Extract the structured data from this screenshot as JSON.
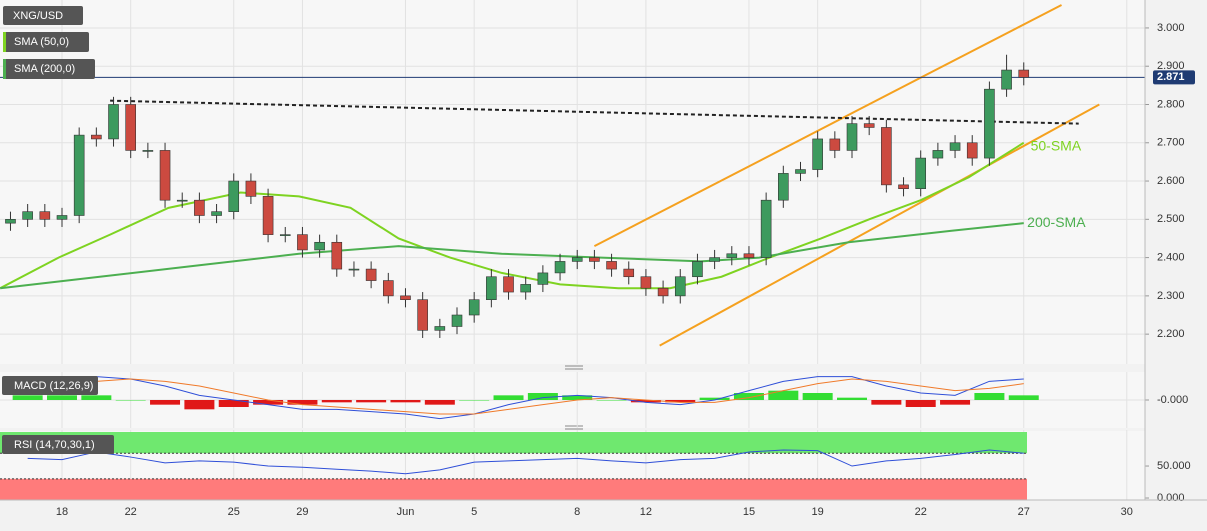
{
  "chart_data": [
    {
      "type": "candlestick",
      "title": "XNG/USD",
      "x": [
        -1.5,
        -1,
        -0.5,
        0,
        0.5,
        1,
        1.5,
        2,
        2.5,
        3,
        3.5,
        4,
        4.5,
        5,
        5.5,
        6,
        6.5,
        7,
        7.5,
        8,
        8.5,
        9,
        9.5,
        10,
        10.5,
        11,
        11.5,
        12,
        12.5,
        13,
        13.5,
        14,
        14.5,
        15,
        15.5,
        16,
        16.5,
        17,
        17.5,
        18,
        18.5,
        19,
        19.5,
        20,
        20.5,
        21,
        21.5,
        22,
        22.5,
        23,
        23.5,
        24,
        24.5,
        25,
        25.5,
        26,
        26.5,
        27,
        27.5,
        28
      ],
      "open": [
        2.49,
        2.5,
        2.52,
        2.5,
        2.51,
        2.72,
        2.71,
        2.8,
        2.68,
        2.68,
        2.55,
        2.55,
        2.51,
        2.52,
        2.6,
        2.56,
        2.46,
        2.46,
        2.42,
        2.44,
        2.37,
        2.37,
        2.34,
        2.3,
        2.29,
        2.21,
        2.22,
        2.25,
        2.29,
        2.35,
        2.31,
        2.33,
        2.36,
        2.39,
        2.4,
        2.39,
        2.37,
        2.35,
        2.32,
        2.3,
        2.35,
        2.39,
        2.4,
        2.41,
        2.4,
        2.55,
        2.62,
        2.63,
        2.71,
        2.68,
        2.75,
        2.74,
        2.59,
        2.58,
        2.66,
        2.68,
        2.7,
        2.66,
        2.84,
        2.89
      ],
      "high": [
        2.52,
        2.54,
        2.54,
        2.53,
        2.74,
        2.74,
        2.82,
        2.82,
        2.7,
        2.7,
        2.57,
        2.57,
        2.54,
        2.62,
        2.62,
        2.58,
        2.48,
        2.48,
        2.46,
        2.46,
        2.39,
        2.39,
        2.36,
        2.32,
        2.31,
        2.24,
        2.27,
        2.31,
        2.37,
        2.37,
        2.35,
        2.38,
        2.41,
        2.42,
        2.42,
        2.41,
        2.39,
        2.37,
        2.34,
        2.37,
        2.41,
        2.42,
        2.43,
        2.43,
        2.57,
        2.64,
        2.65,
        2.73,
        2.73,
        2.77,
        2.77,
        2.76,
        2.61,
        2.68,
        2.7,
        2.72,
        2.72,
        2.86,
        2.93,
        2.91
      ],
      "low": [
        2.47,
        2.48,
        2.48,
        2.48,
        2.49,
        2.69,
        2.69,
        2.66,
        2.66,
        2.53,
        2.53,
        2.49,
        2.49,
        2.5,
        2.54,
        2.44,
        2.44,
        2.4,
        2.4,
        2.35,
        2.35,
        2.32,
        2.28,
        2.27,
        2.19,
        2.19,
        2.2,
        2.23,
        2.27,
        2.29,
        2.29,
        2.31,
        2.34,
        2.37,
        2.37,
        2.35,
        2.33,
        2.3,
        2.28,
        2.28,
        2.33,
        2.37,
        2.38,
        2.38,
        2.38,
        2.53,
        2.6,
        2.61,
        2.66,
        2.66,
        2.72,
        2.57,
        2.56,
        2.56,
        2.64,
        2.66,
        2.64,
        2.64,
        2.82,
        2.85
      ],
      "close": [
        2.5,
        2.52,
        2.5,
        2.51,
        2.72,
        2.71,
        2.8,
        2.68,
        2.68,
        2.55,
        2.55,
        2.51,
        2.52,
        2.6,
        2.56,
        2.46,
        2.46,
        2.42,
        2.44,
        2.37,
        2.37,
        2.34,
        2.3,
        2.29,
        2.21,
        2.22,
        2.25,
        2.29,
        2.35,
        2.31,
        2.33,
        2.36,
        2.39,
        2.4,
        2.39,
        2.37,
        2.35,
        2.32,
        2.3,
        2.35,
        2.39,
        2.4,
        2.41,
        2.4,
        2.55,
        2.62,
        2.63,
        2.71,
        2.68,
        2.75,
        2.74,
        2.59,
        2.58,
        2.66,
        2.68,
        2.7,
        2.66,
        2.84,
        2.89,
        2.871
      ],
      "up_color": "#3d9a5e",
      "down_color": "#cc4a40",
      "xlim": [
        -1.805,
        31.53
      ],
      "ylim": [
        2.122,
        3.073
      ],
      "yticks": [
        {
          "value": 2.2,
          "label": "2.200"
        },
        {
          "value": 2.3,
          "label": "2.300"
        },
        {
          "value": 2.4,
          "label": "2.400"
        },
        {
          "value": 2.5,
          "label": "2.500"
        },
        {
          "value": 2.6,
          "label": "2.600"
        },
        {
          "value": 2.7,
          "label": "2.700"
        },
        {
          "value": 2.8,
          "label": "2.800"
        },
        {
          "value": 2.9,
          "label": "2.900"
        },
        {
          "value": 3.0,
          "label": "3.000"
        }
      ],
      "last_price": 2.871,
      "last_price_color": "#1f3b73",
      "grid": true,
      "series": [
        {
          "name": "SMA (50,0)",
          "color": "#7ed321",
          "x": [
            -1.8,
            -0.1,
            1.4,
            3.1,
            5.2,
            6.9,
            8.4,
            9.8,
            11.3,
            12.8,
            14.5,
            16.2,
            17.7,
            19.2,
            20.6,
            22.1,
            23.5,
            25.0,
            26.4,
            28.0
          ],
          "values": [
            2.32,
            2.4,
            2.46,
            2.53,
            2.57,
            2.56,
            2.53,
            2.45,
            2.4,
            2.36,
            2.33,
            2.32,
            2.32,
            2.35,
            2.4,
            2.45,
            2.5,
            2.55,
            2.61,
            2.7
          ]
        },
        {
          "name": "SMA (200,0)",
          "color": "#4caf50",
          "x": [
            -1.8,
            1.1,
            4.0,
            6.9,
            9.8,
            12.8,
            15.7,
            18.6,
            20.3,
            22.9,
            25.9,
            28.0
          ],
          "values": [
            2.32,
            2.35,
            2.38,
            2.41,
            2.43,
            2.41,
            2.4,
            2.39,
            2.4,
            2.44,
            2.47,
            2.49
          ]
        }
      ],
      "trendlines": [
        {
          "x": [
            15.5,
            29.1
          ],
          "values": [
            2.43,
            3.06
          ],
          "color": "#f5a11f",
          "style": "solid"
        },
        {
          "x": [
            17.4,
            30.2
          ],
          "values": [
            2.17,
            2.8
          ],
          "color": "#f5a11f",
          "style": "solid"
        },
        {
          "x": [
            1.4,
            29.6
          ],
          "values": [
            2.81,
            2.75
          ],
          "color": "#222222",
          "style": "dashed"
        }
      ],
      "annotations": [
        {
          "text": "50-SMA",
          "x": 28.2,
          "y": 2.69,
          "color": "#7ed321"
        },
        {
          "text": "200-SMA",
          "x": 28.1,
          "y": 2.49,
          "color": "#4caf50"
        }
      ]
    },
    {
      "type": "macd",
      "title": "MACD (12,26,9)",
      "x": [
        -1,
        0,
        1,
        2,
        3,
        4,
        5,
        6,
        7,
        8,
        9,
        10,
        11,
        12,
        13,
        14,
        15,
        16,
        17,
        18,
        19,
        20,
        21,
        22,
        23,
        24,
        25,
        26,
        27,
        28
      ],
      "macd": [
        0.03,
        0.04,
        0.05,
        0.045,
        0.03,
        0.01,
        0.0,
        -0.01,
        -0.02,
        -0.02,
        -0.025,
        -0.03,
        -0.04,
        -0.03,
        -0.01,
        0.005,
        0.01,
        0.005,
        -0.005,
        -0.01,
        0.0,
        0.02,
        0.04,
        0.05,
        0.05,
        0.03,
        0.015,
        0.01,
        0.04,
        0.045
      ],
      "signal": [
        0.02,
        0.03,
        0.04,
        0.045,
        0.04,
        0.03,
        0.015,
        0.0,
        -0.01,
        -0.015,
        -0.02,
        -0.025,
        -0.03,
        -0.03,
        -0.02,
        -0.01,
        0.0,
        0.005,
        0.0,
        -0.005,
        -0.005,
        0.005,
        0.02,
        0.035,
        0.045,
        0.04,
        0.03,
        0.02,
        0.025,
        0.035
      ],
      "hist": [
        0.01,
        0.01,
        0.01,
        0,
        -0.01,
        -0.02,
        -0.015,
        -0.01,
        -0.01,
        -0.005,
        -0.005,
        -0.005,
        -0.01,
        0,
        0.01,
        0.015,
        0.01,
        0,
        -0.005,
        -0.005,
        0.005,
        0.015,
        0.02,
        0.015,
        0.005,
        -0.01,
        -0.015,
        -0.01,
        0.015,
        0.01
      ],
      "macd_color": "#2f4fd8",
      "signal_color": "#f07a2a",
      "up_color": "#33dd33",
      "down_color": "#e01818",
      "xlim": [
        -1.805,
        31.53
      ],
      "ylim": [
        -0.06,
        0.06
      ],
      "yticks": [
        {
          "value": 0,
          "label": "-0.000"
        }
      ]
    },
    {
      "type": "rsi",
      "title": "RSI (14,70,30,1)",
      "x": [
        -1,
        0,
        1,
        2,
        3,
        4,
        5,
        6,
        7,
        8,
        9,
        10,
        11,
        12,
        13,
        14,
        15,
        16,
        17,
        18,
        19,
        20,
        21,
        22,
        23,
        24,
        25,
        26,
        27,
        28
      ],
      "values": [
        62,
        60,
        72,
        64,
        55,
        58,
        56,
        50,
        48,
        45,
        42,
        38,
        44,
        56,
        58,
        60,
        62,
        58,
        55,
        60,
        62,
        72,
        75,
        74,
        50,
        58,
        62,
        68,
        75,
        70
      ],
      "color": "#2f4fd8",
      "levels": [
        30,
        70
      ],
      "upper_color": "#6fe86f",
      "lower_color": "#ff7b7b",
      "xlim": [
        -1.805,
        31.53
      ],
      "ylim": [
        -3.1,
        106.3
      ],
      "yticks": [
        {
          "value": 50,
          "label": "50.000"
        },
        {
          "value": 0,
          "label": "0.000"
        }
      ],
      "xticks": [
        {
          "value": 0,
          "label": "18"
        },
        {
          "value": 2,
          "label": "22"
        },
        {
          "value": 5,
          "label": "25"
        },
        {
          "value": 7,
          "label": "29"
        },
        {
          "value": 10,
          "label": "Jun"
        },
        {
          "value": 12,
          "label": "5"
        },
        {
          "value": 15,
          "label": "8"
        },
        {
          "value": 17,
          "label": "12"
        },
        {
          "value": 20,
          "label": "15"
        },
        {
          "value": 22,
          "label": "19"
        },
        {
          "value": 25,
          "label": "22"
        },
        {
          "value": 28,
          "label": "27"
        },
        {
          "value": 31,
          "label": "30"
        }
      ]
    }
  ]
}
